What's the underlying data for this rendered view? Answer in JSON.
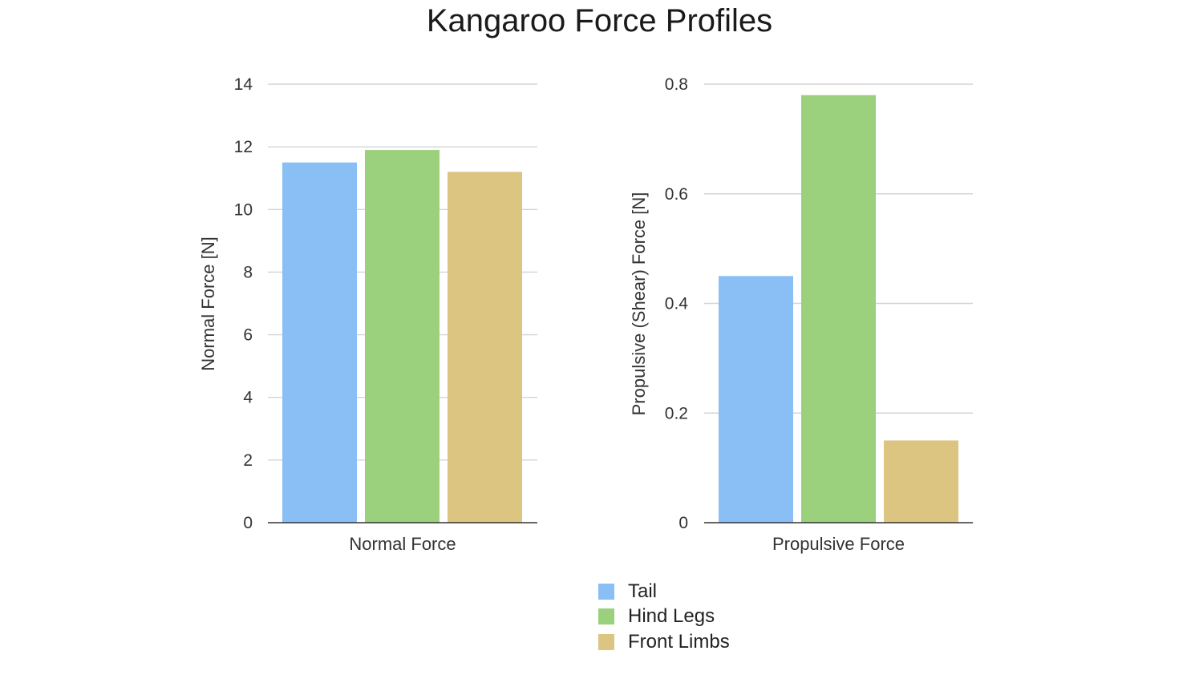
{
  "title": "Kangaroo Force Profiles",
  "chart_data": [
    {
      "type": "bar",
      "title": "",
      "xlabel": "",
      "ylabel": "Normal Force [N]",
      "categories": [
        "Normal Force"
      ],
      "ylim": [
        0,
        14
      ],
      "yticks": [
        0,
        2,
        4,
        6,
        8,
        10,
        12,
        14
      ],
      "grid": true,
      "series": [
        {
          "name": "Tail",
          "values": [
            11.5
          ]
        },
        {
          "name": "Hind Legs",
          "values": [
            11.9
          ]
        },
        {
          "name": "Front Limbs",
          "values": [
            11.2
          ]
        }
      ]
    },
    {
      "type": "bar",
      "title": "",
      "xlabel": "",
      "ylabel": "Propulsive (Shear) Force [N]",
      "categories": [
        "Propulsive Force"
      ],
      "ylim": [
        0,
        0.8
      ],
      "yticks": [
        0,
        0.2,
        0.4,
        0.6,
        0.8
      ],
      "grid": true,
      "series": [
        {
          "name": "Tail",
          "values": [
            0.45
          ]
        },
        {
          "name": "Hind Legs",
          "values": [
            0.78
          ]
        },
        {
          "name": "Front Limbs",
          "values": [
            0.15
          ]
        }
      ]
    }
  ],
  "legend": {
    "placement": "bottom-center",
    "items": [
      {
        "label": "Tail",
        "color": "#89bff5"
      },
      {
        "label": "Hind Legs",
        "color": "#9bd07c"
      },
      {
        "label": "Front Limbs",
        "color": "#dcc581"
      }
    ]
  }
}
